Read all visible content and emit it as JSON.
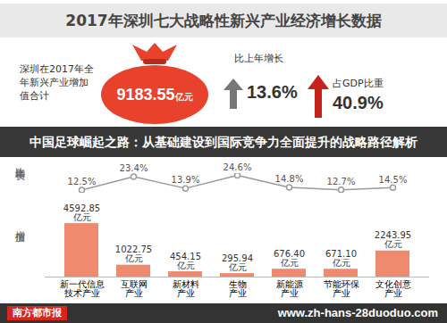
{
  "header": {
    "title": "2017年深圳七大战略性新兴产业经济增长数据"
  },
  "summary": {
    "total": {
      "label": "深圳在2017年全年新兴产业增加值合计",
      "value": "9183.55",
      "unit": "亿元"
    },
    "growth": {
      "label": "比上年增长",
      "value": "13.6%"
    },
    "gdp_share": {
      "label": "占GDP比重",
      "value": "40.9%"
    }
  },
  "overlay": {
    "banner": "中国足球崛起之路：从基础建设到国际竞争力全面提升的战略路径解析",
    "logo": "南方都市报",
    "url": "www.zh-hans-28duoduo.com"
  },
  "chart_data": [
    {
      "type": "line",
      "y_label": "比上年增长",
      "categories": [
        "新一代信息技术产业",
        "互联网产业",
        "新材料产业",
        "生物产业",
        "新能源产业",
        "节能环保产业",
        "文化创意产业"
      ],
      "values": [
        12.5,
        23.4,
        13.9,
        24.6,
        14.8,
        12.7,
        14.5
      ],
      "value_labels": [
        "12.5%",
        "23.4%",
        "13.9%",
        "24.6%",
        "14.8%",
        "12.7%",
        "14.5%"
      ],
      "ylim": [
        10,
        26
      ],
      "yticks": [],
      "tick_labels": false,
      "color": "#9b9b9b",
      "marker": "circle",
      "data_labels": true
    },
    {
      "type": "bar",
      "y_label": "增加值",
      "categories": [
        "新一代信息技术产业",
        "互联网产业",
        "新材料产业",
        "生物产业",
        "新能源产业",
        "节能环保产业",
        "文化创意产业"
      ],
      "values": [
        4592.85,
        1022.75,
        454.15,
        295.94,
        676.4,
        671.1,
        2243.95
      ],
      "value_labels": [
        "4592.85亿元",
        "1022.75亿元",
        "454.15亿元",
        "295.94亿元",
        "676.40亿元",
        "671.10亿元",
        "2243.95亿元"
      ],
      "ylim": [
        0,
        4600
      ],
      "yticks": [],
      "tick_labels": "x",
      "color": "#ef8a6f",
      "data_labels": true
    }
  ]
}
